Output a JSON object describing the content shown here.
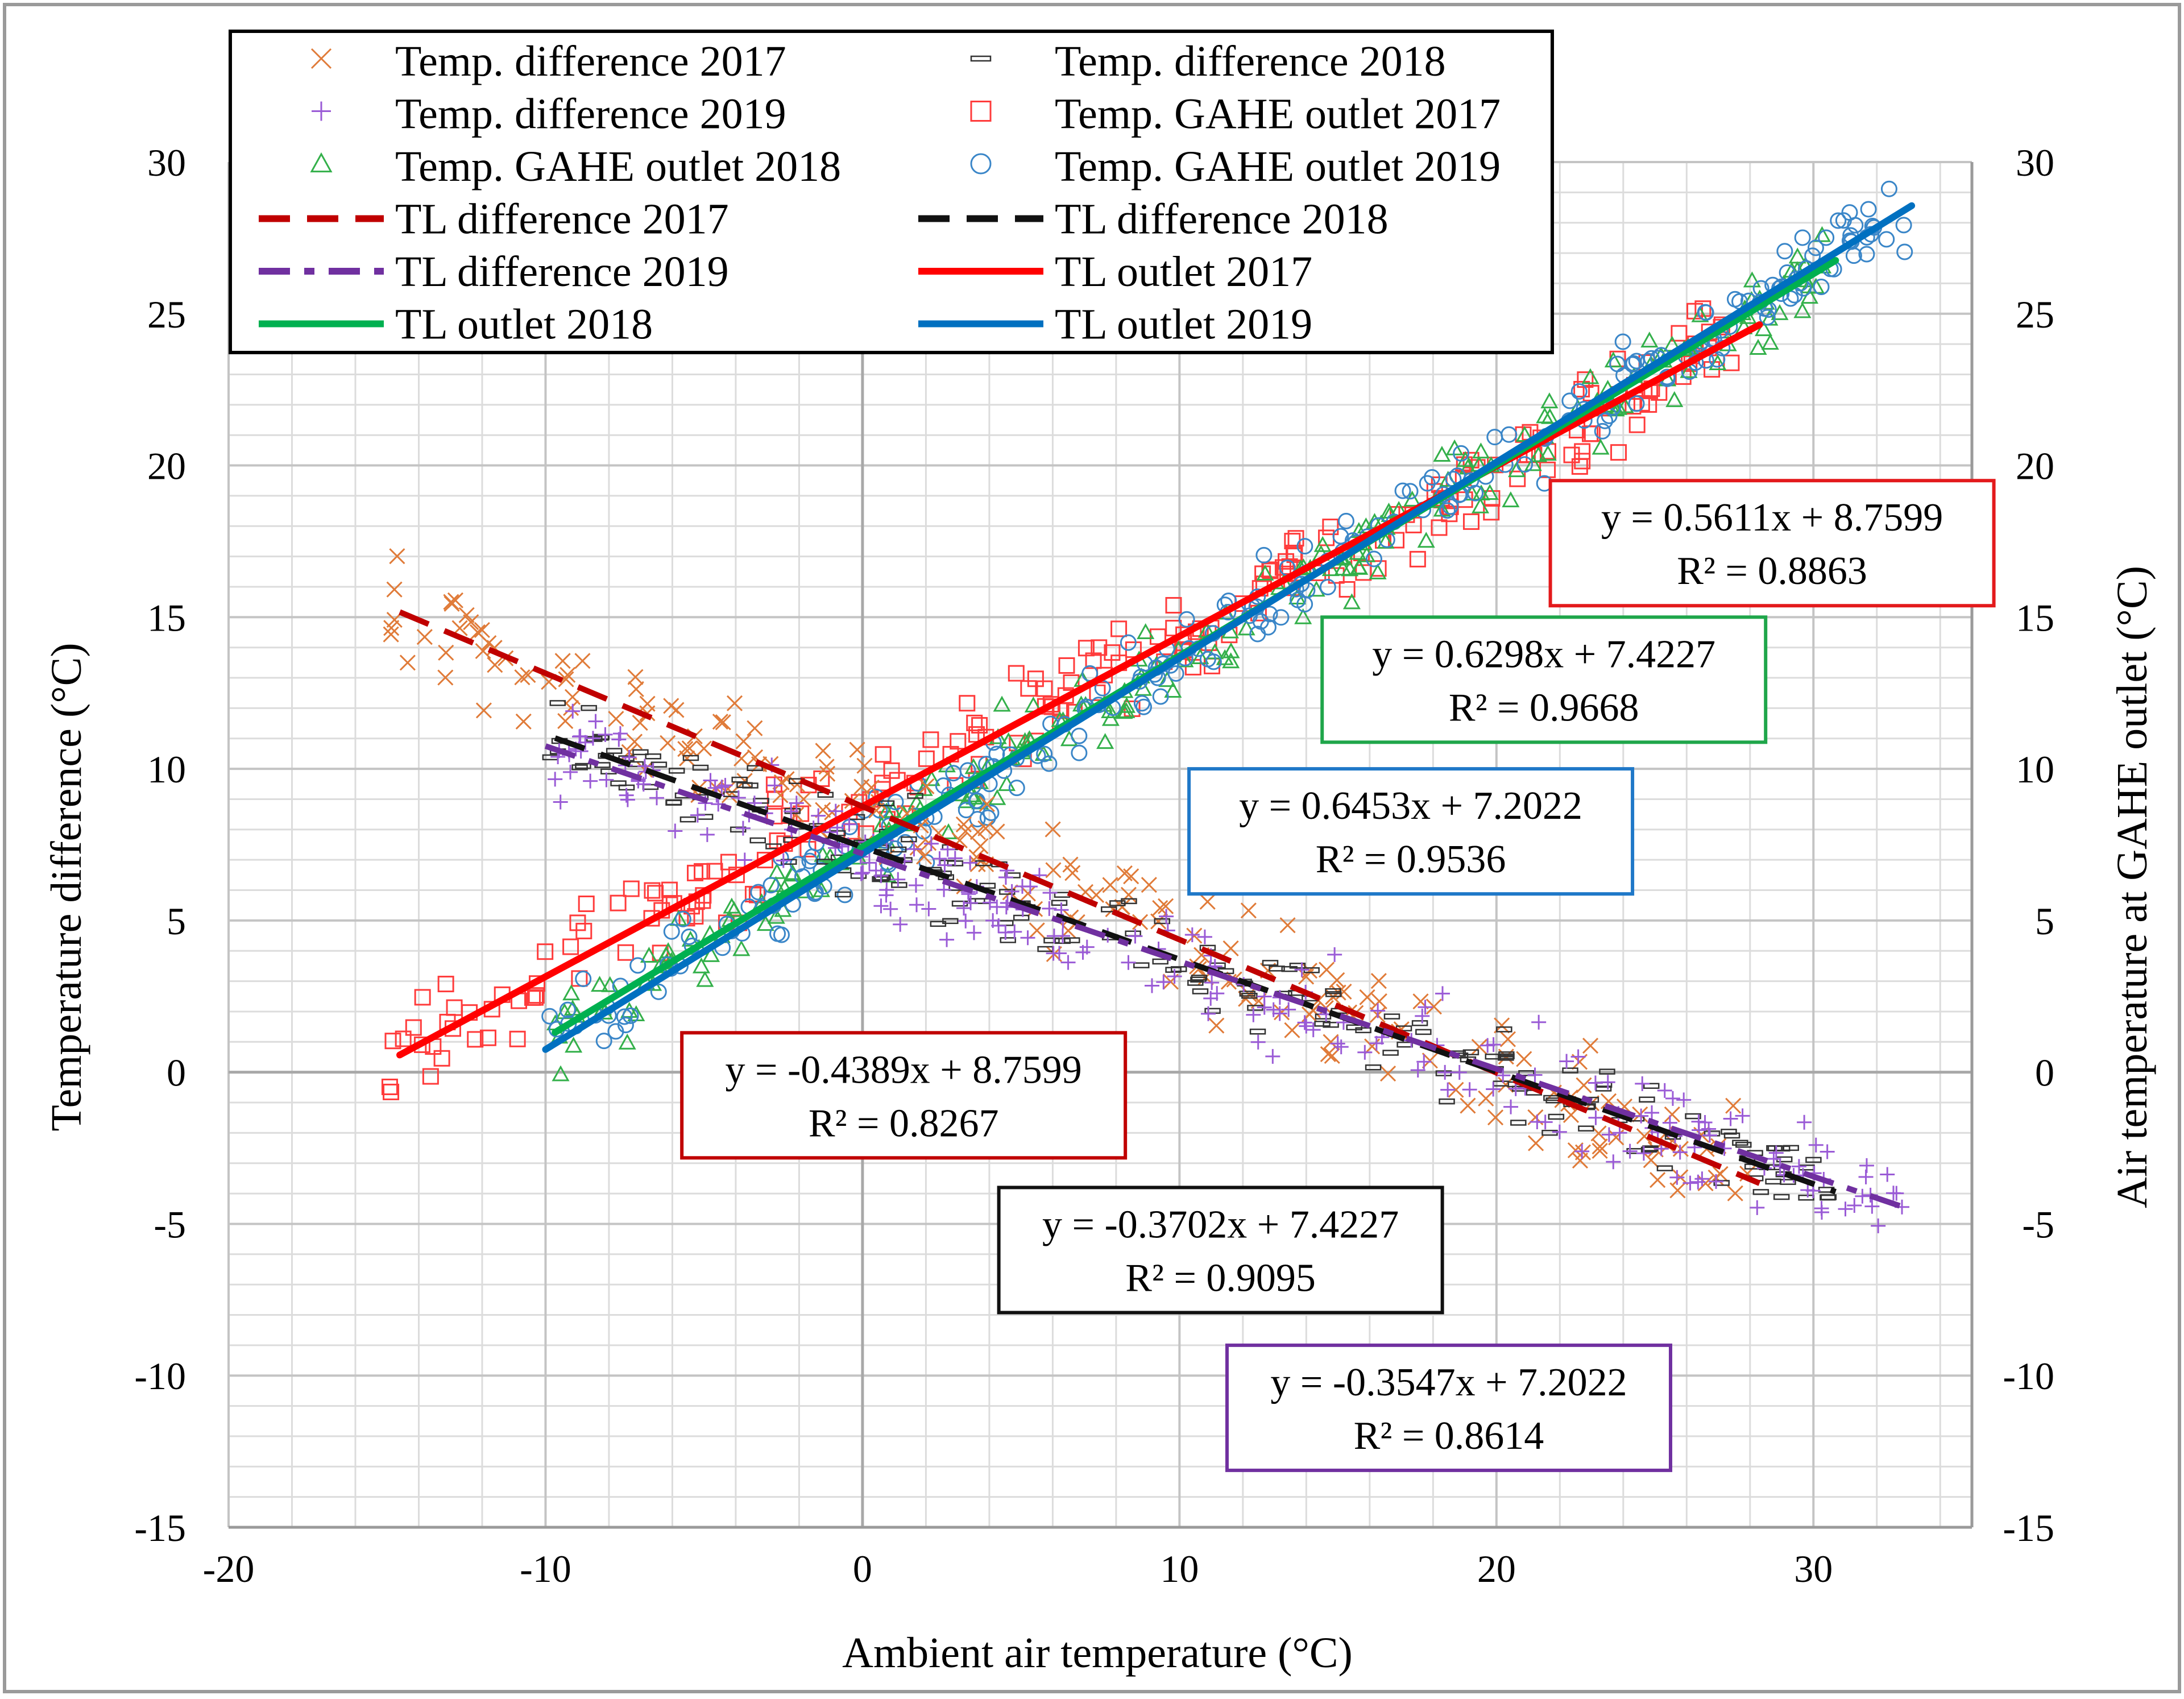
{
  "chart_data": {
    "type": "scatter",
    "title": "",
    "xlabel": "Ambient air temperature (°C)",
    "ylabel": "Temperature difference (°C)",
    "y2label": "Air temperature at GAHE outlet (°C)",
    "xlim": [
      -20,
      35
    ],
    "ylim": [
      -15,
      30
    ],
    "xticks": [
      -20,
      -10,
      0,
      10,
      20,
      30
    ],
    "yticks": [
      -15,
      -10,
      -5,
      0,
      5,
      10,
      15,
      20,
      25,
      30
    ],
    "xtick_labels": [
      "-20",
      "-10",
      "0",
      "10",
      "20",
      "30"
    ],
    "ytick_labels": [
      "-15",
      "-10",
      "-5",
      "0",
      "5",
      "10",
      "15",
      "20",
      "25",
      "30"
    ],
    "y2tick_labels": [
      "-15",
      "-10",
      "-5",
      "0",
      "5",
      "10",
      "15",
      "20",
      "25",
      "30"
    ],
    "grid": true,
    "legend_position": "top-left",
    "legend": [
      {
        "label": "Temp. difference 2017",
        "kind": "marker",
        "marker": "x",
        "color": "#E07B39"
      },
      {
        "label": "Temp. difference 2018",
        "kind": "marker",
        "marker": "dash",
        "color": "#333333"
      },
      {
        "label": "Temp. difference 2019",
        "kind": "marker",
        "marker": "plus",
        "color": "#9A5BD6"
      },
      {
        "label": "Temp. GAHE outlet 2017",
        "kind": "marker",
        "marker": "square",
        "color": "#FF3B3B"
      },
      {
        "label": "Temp. GAHE outlet 2018",
        "kind": "marker",
        "marker": "triangle",
        "color": "#33B04A"
      },
      {
        "label": "Temp. GAHE outlet 2019",
        "kind": "marker",
        "marker": "circle",
        "color": "#3A86C8"
      },
      {
        "label": "TL difference 2017",
        "kind": "line",
        "dash": "dash",
        "color": "#C00000"
      },
      {
        "label": "TL difference 2018",
        "kind": "line",
        "dash": "dash",
        "color": "#111111"
      },
      {
        "label": "TL difference 2019",
        "kind": "line",
        "dash": "dashdot",
        "color": "#7030A0"
      },
      {
        "label": "TL outlet 2017",
        "kind": "line",
        "dash": "solid",
        "color": "#FF0000"
      },
      {
        "label": "TL outlet 2018",
        "kind": "line",
        "dash": "solid",
        "color": "#00B050"
      },
      {
        "label": "TL outlet 2019",
        "kind": "line",
        "dash": "solid",
        "color": "#0070C0"
      }
    ],
    "trendlines": [
      {
        "name": "TL outlet 2017",
        "slope": 0.5611,
        "intercept": 8.7599,
        "x": [
          -14.6,
          28.3
        ],
        "color": "#FF0000",
        "dash": "solid",
        "width": 12
      },
      {
        "name": "TL outlet 2018",
        "slope": 0.6298,
        "intercept": 7.4227,
        "x": [
          -9.7,
          30.7
        ],
        "color": "#00B050",
        "dash": "solid",
        "width": 12
      },
      {
        "name": "TL outlet 2019",
        "slope": 0.6453,
        "intercept": 7.2022,
        "x": [
          -10.0,
          33.1
        ],
        "color": "#0070C0",
        "dash": "solid",
        "width": 12
      },
      {
        "name": "TL difference 2017",
        "slope": -0.4389,
        "intercept": 8.7599,
        "x": [
          -14.6,
          28.3
        ],
        "color": "#C00000",
        "dash": "dash",
        "width": 10
      },
      {
        "name": "TL difference 2018",
        "slope": -0.3702,
        "intercept": 7.4227,
        "x": [
          -9.7,
          30.7
        ],
        "color": "#111111",
        "dash": "dash",
        "width": 10
      },
      {
        "name": "TL difference 2019",
        "slope": -0.3547,
        "intercept": 7.2022,
        "x": [
          -10.0,
          33.1
        ],
        "color": "#7030A0",
        "dash": "dashdot",
        "width": 10
      }
    ],
    "scatter_clouds": [
      {
        "name": "Temp. GAHE outlet 2017",
        "marker": "square",
        "color": "#FF3B3B",
        "slope": 0.5611,
        "intercept": 8.7599,
        "x_range": [
          -15,
          27.5
        ],
        "spread": 1.6,
        "count": 230
      },
      {
        "name": "Temp. GAHE outlet 2018",
        "marker": "triangle",
        "color": "#33B04A",
        "slope": 0.6298,
        "intercept": 7.4227,
        "x_range": [
          -9.7,
          30.5
        ],
        "spread": 1.3,
        "count": 230
      },
      {
        "name": "Temp. GAHE outlet 2019",
        "marker": "circle",
        "color": "#3A86C8",
        "slope": 0.6453,
        "intercept": 7.2022,
        "x_range": [
          -10,
          33
        ],
        "spread": 1.3,
        "count": 260
      },
      {
        "name": "Temp. difference 2017",
        "marker": "x",
        "color": "#E07B39",
        "slope": -0.4389,
        "intercept": 8.7599,
        "x_range": [
          -15,
          28
        ],
        "spread": 1.8,
        "count": 230
      },
      {
        "name": "Temp. difference 2018",
        "marker": "dash",
        "color": "#333333",
        "slope": -0.3702,
        "intercept": 7.4227,
        "x_range": [
          -10,
          30.5
        ],
        "spread": 1.5,
        "count": 220
      },
      {
        "name": "Temp. difference 2019",
        "marker": "plus",
        "color": "#9A5BD6",
        "slope": -0.3547,
        "intercept": 7.2022,
        "x_range": [
          -10,
          33
        ],
        "spread": 1.6,
        "count": 260
      }
    ],
    "annotations": [
      {
        "line1": "y = 0.5611x + 8.7599",
        "line2": "R² = 0.8863",
        "border": "#E31A1C",
        "anchor": [
          21.7,
          19.5
        ]
      },
      {
        "line1": "y = 0.6298x + 7.4227",
        "line2": "R² = 0.9668",
        "border": "#1FA64A",
        "anchor": [
          14.5,
          15.0
        ]
      },
      {
        "line1": "y = 0.6453x + 7.2022",
        "line2": "R² = 0.9536",
        "border": "#1F78C8",
        "anchor": [
          10.3,
          10.0
        ]
      },
      {
        "line1": "y = -0.4389x + 8.7599",
        "line2": "R² = 0.8267",
        "border": "#C00000",
        "anchor": [
          -5.7,
          1.3
        ]
      },
      {
        "line1": "y = -0.3702x + 7.4227",
        "line2": "R² = 0.9095",
        "border": "#111111",
        "anchor": [
          4.3,
          -3.8
        ]
      },
      {
        "line1": "y = -0.3547x + 7.2022",
        "line2": "R² = 0.8614",
        "border": "#7030A0",
        "anchor": [
          11.5,
          -9.0
        ]
      }
    ]
  }
}
